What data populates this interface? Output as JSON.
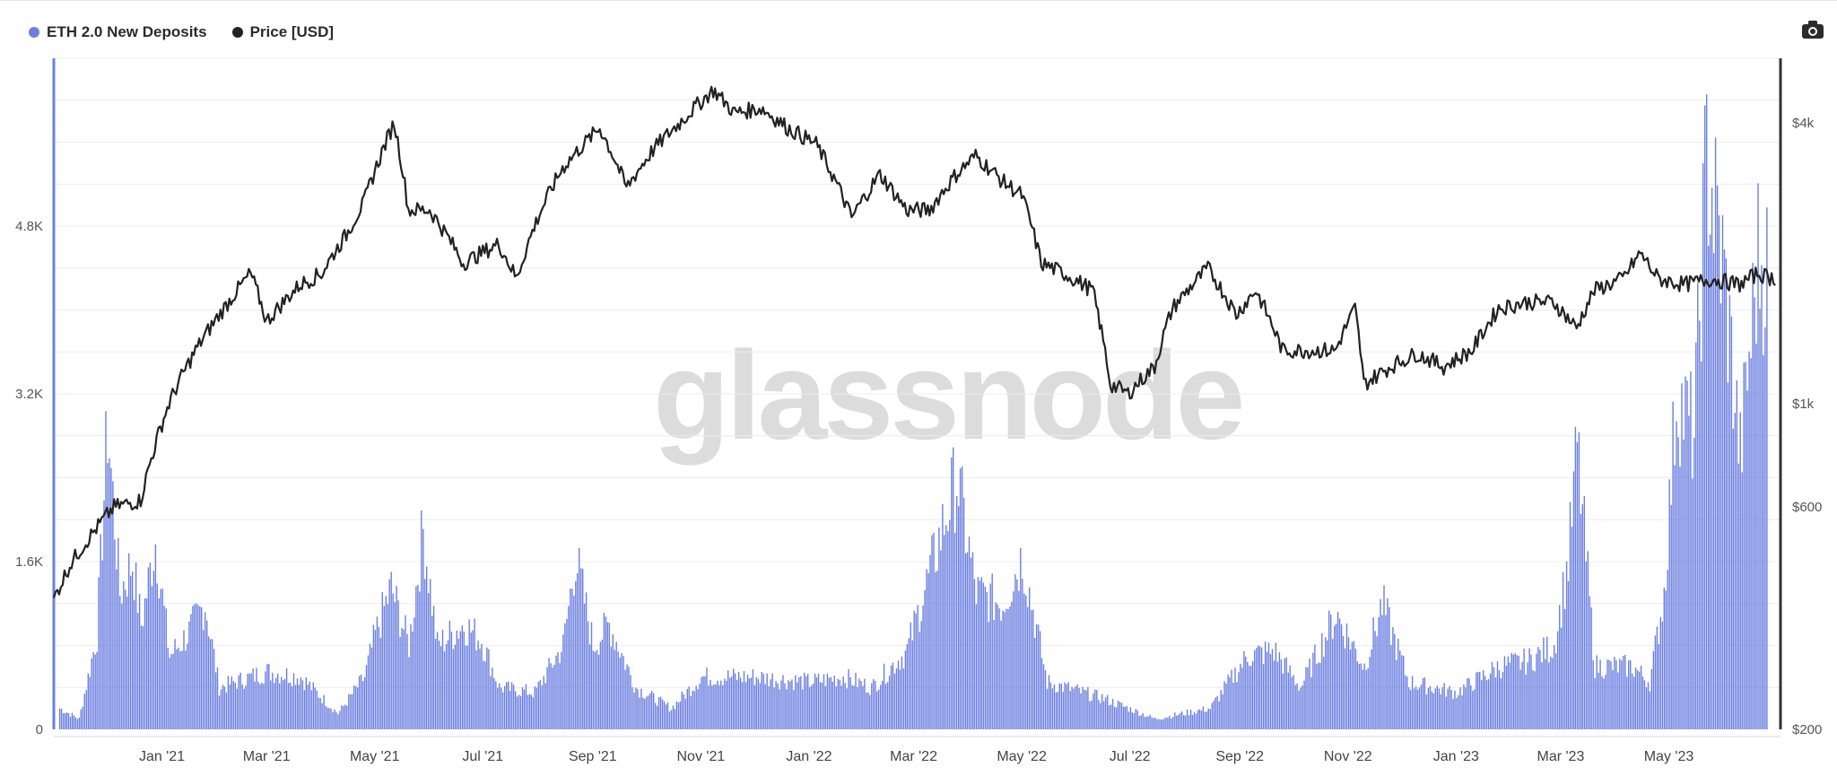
{
  "legend": {
    "deposits_label": "ETH 2.0 New Deposits",
    "price_label": "Price [USD]"
  },
  "watermark": "glassnode",
  "icons": {
    "export": "camera-icon"
  },
  "colors": {
    "deposits": "#6b7fe0",
    "price": "#222222",
    "grid": "#ececec",
    "axis_left": "#6b7fe0",
    "axis_right": "#333333"
  },
  "chart_data": {
    "type": "bar",
    "x_ticks": [
      "Jan '21",
      "Mar '21",
      "May '21",
      "Jul '21",
      "Sep '21",
      "Nov '21",
      "Jan '22",
      "Mar '22",
      "May '22",
      "Jul '22",
      "Sep '22",
      "Nov '22",
      "Jan '23",
      "Mar '23",
      "May '23"
    ],
    "y_left": {
      "ticks": [
        "0",
        "1.6K",
        "3.2K",
        "4.8K"
      ],
      "values": [
        0,
        1600,
        3200,
        4800
      ],
      "range": [
        0,
        6400
      ]
    },
    "y_right": {
      "scale": "log",
      "ticks": [
        "$200",
        "$600",
        "$1k",
        "$4k"
      ],
      "values": [
        200,
        600,
        1000,
        4000
      ],
      "range": [
        200,
        5500
      ]
    },
    "series": [
      {
        "name": "ETH 2.0 New Deposits",
        "axis": "left",
        "type": "bar",
        "keyframes": [
          [
            "2020-11-04",
            200
          ],
          [
            "2020-11-15",
            100
          ],
          [
            "2020-11-25",
            900
          ],
          [
            "2020-12-01",
            2900
          ],
          [
            "2020-12-08",
            1300
          ],
          [
            "2020-12-15",
            1600
          ],
          [
            "2020-12-20",
            1000
          ],
          [
            "2020-12-28",
            1800
          ],
          [
            "2021-01-05",
            700
          ],
          [
            "2021-01-15",
            900
          ],
          [
            "2021-01-25",
            1200
          ],
          [
            "2021-02-02",
            400
          ],
          [
            "2021-03-01",
            550
          ],
          [
            "2021-03-20",
            500
          ],
          [
            "2021-04-10",
            150
          ],
          [
            "2021-04-25",
            500
          ],
          [
            "2021-05-01",
            900
          ],
          [
            "2021-05-10",
            1350
          ],
          [
            "2021-05-20",
            800
          ],
          [
            "2021-05-28",
            1900
          ],
          [
            "2021-06-05",
            800
          ],
          [
            "2021-06-20",
            1000
          ],
          [
            "2021-06-30",
            850
          ],
          [
            "2021-07-10",
            400
          ],
          [
            "2021-07-30",
            350
          ],
          [
            "2021-08-15",
            800
          ],
          [
            "2021-08-22",
            1650
          ],
          [
            "2021-09-01",
            800
          ],
          [
            "2021-09-10",
            1000
          ],
          [
            "2021-09-25",
            400
          ],
          [
            "2021-10-15",
            200
          ],
          [
            "2021-11-01",
            500
          ],
          [
            "2021-12-01",
            500
          ],
          [
            "2022-01-01",
            450
          ],
          [
            "2022-01-20",
            500
          ],
          [
            "2022-02-05",
            400
          ],
          [
            "2022-02-25",
            750
          ],
          [
            "2022-03-10",
            1500
          ],
          [
            "2022-03-25",
            2400
          ],
          [
            "2022-04-05",
            1300
          ],
          [
            "2022-04-20",
            1200
          ],
          [
            "2022-05-01",
            1650
          ],
          [
            "2022-05-15",
            450
          ],
          [
            "2022-06-15",
            300
          ],
          [
            "2022-07-15",
            100
          ],
          [
            "2022-08-15",
            200
          ],
          [
            "2022-09-05",
            700
          ],
          [
            "2022-09-20",
            750
          ],
          [
            "2022-10-05",
            400
          ],
          [
            "2022-10-25",
            1100
          ],
          [
            "2022-11-10",
            600
          ],
          [
            "2022-11-20",
            1200
          ],
          [
            "2022-12-05",
            450
          ],
          [
            "2023-01-01",
            350
          ],
          [
            "2023-01-25",
            600
          ],
          [
            "2023-02-10",
            650
          ],
          [
            "2023-02-25",
            800
          ],
          [
            "2023-03-05",
            1600
          ],
          [
            "2023-03-10",
            2700
          ],
          [
            "2023-03-20",
            600
          ],
          [
            "2023-04-10",
            600
          ],
          [
            "2023-04-20",
            450
          ],
          [
            "2023-04-28",
            1300
          ],
          [
            "2023-05-05",
            3200
          ],
          [
            "2023-05-15",
            2800
          ],
          [
            "2023-05-22",
            5500
          ],
          [
            "2023-06-01",
            4300
          ],
          [
            "2023-06-10",
            2600
          ],
          [
            "2023-06-20",
            4500
          ],
          [
            "2023-06-25",
            4400
          ]
        ]
      },
      {
        "name": "Price [USD]",
        "axis": "right",
        "type": "line",
        "keyframes": [
          [
            "2020-11-01",
            380
          ],
          [
            "2020-11-10",
            450
          ],
          [
            "2020-11-25",
            540
          ],
          [
            "2020-12-05",
            600
          ],
          [
            "2020-12-20",
            620
          ],
          [
            "2021-01-05",
            1000
          ],
          [
            "2021-01-20",
            1300
          ],
          [
            "2021-02-05",
            1600
          ],
          [
            "2021-02-20",
            1900
          ],
          [
            "2021-03-01",
            1500
          ],
          [
            "2021-03-20",
            1800
          ],
          [
            "2021-04-01",
            1900
          ],
          [
            "2021-04-15",
            2300
          ],
          [
            "2021-04-25",
            2700
          ],
          [
            "2021-05-03",
            3300
          ],
          [
            "2021-05-12",
            4000
          ],
          [
            "2021-05-20",
            2600
          ],
          [
            "2021-06-01",
            2600
          ],
          [
            "2021-06-20",
            2000
          ],
          [
            "2021-07-10",
            2200
          ],
          [
            "2021-07-20",
            1850
          ],
          [
            "2021-08-01",
            2500
          ],
          [
            "2021-08-15",
            3200
          ],
          [
            "2021-09-05",
            3900
          ],
          [
            "2021-09-20",
            2900
          ],
          [
            "2021-10-05",
            3500
          ],
          [
            "2021-10-20",
            4000
          ],
          [
            "2021-11-08",
            4700
          ],
          [
            "2021-11-20",
            4200
          ],
          [
            "2021-12-05",
            4300
          ],
          [
            "2021-12-20",
            3900
          ],
          [
            "2022-01-05",
            3600
          ],
          [
            "2022-01-25",
            2500
          ],
          [
            "2022-02-10",
            3100
          ],
          [
            "2022-02-25",
            2600
          ],
          [
            "2022-03-10",
            2600
          ],
          [
            "2022-03-25",
            3100
          ],
          [
            "2022-04-05",
            3400
          ],
          [
            "2022-04-20",
            3000
          ],
          [
            "2022-05-01",
            2800
          ],
          [
            "2022-05-12",
            2000
          ],
          [
            "2022-05-25",
            1900
          ],
          [
            "2022-06-10",
            1750
          ],
          [
            "2022-06-20",
            1100
          ],
          [
            "2022-06-30",
            1050
          ],
          [
            "2022-07-15",
            1200
          ],
          [
            "2022-07-25",
            1600
          ],
          [
            "2022-08-14",
            1950
          ],
          [
            "2022-08-30",
            1550
          ],
          [
            "2022-09-10",
            1750
          ],
          [
            "2022-09-25",
            1300
          ],
          [
            "2022-10-10",
            1300
          ],
          [
            "2022-10-25",
            1300
          ],
          [
            "2022-11-05",
            1600
          ],
          [
            "2022-11-10",
            1100
          ],
          [
            "2022-11-25",
            1200
          ],
          [
            "2022-12-10",
            1280
          ],
          [
            "2022-12-25",
            1200
          ],
          [
            "2023-01-10",
            1300
          ],
          [
            "2023-01-25",
            1600
          ],
          [
            "2023-02-10",
            1650
          ],
          [
            "2023-02-25",
            1650
          ],
          [
            "2023-03-10",
            1450
          ],
          [
            "2023-03-20",
            1750
          ],
          [
            "2023-04-05",
            1850
          ],
          [
            "2023-04-15",
            2100
          ],
          [
            "2023-04-25",
            1850
          ],
          [
            "2023-05-10",
            1800
          ],
          [
            "2023-05-25",
            1850
          ],
          [
            "2023-06-10",
            1800
          ],
          [
            "2023-06-20",
            1900
          ],
          [
            "2023-06-30",
            1850
          ]
        ]
      }
    ],
    "grid": true,
    "legend_position": "top-left"
  }
}
